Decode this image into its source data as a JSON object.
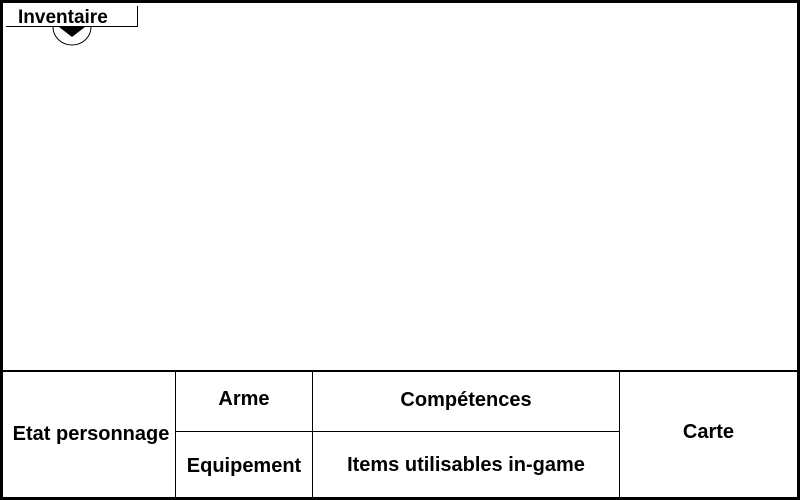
{
  "inventory_tab": {
    "label": "Inventaire",
    "icon": "chevron-down-icon"
  },
  "bottom_panel": {
    "character_state": "Etat personnage",
    "weapon": "Arme",
    "equipment": "Equipement",
    "skills": "Compétences",
    "usable_items": "Items utilisables in-game",
    "map": "Carte"
  }
}
